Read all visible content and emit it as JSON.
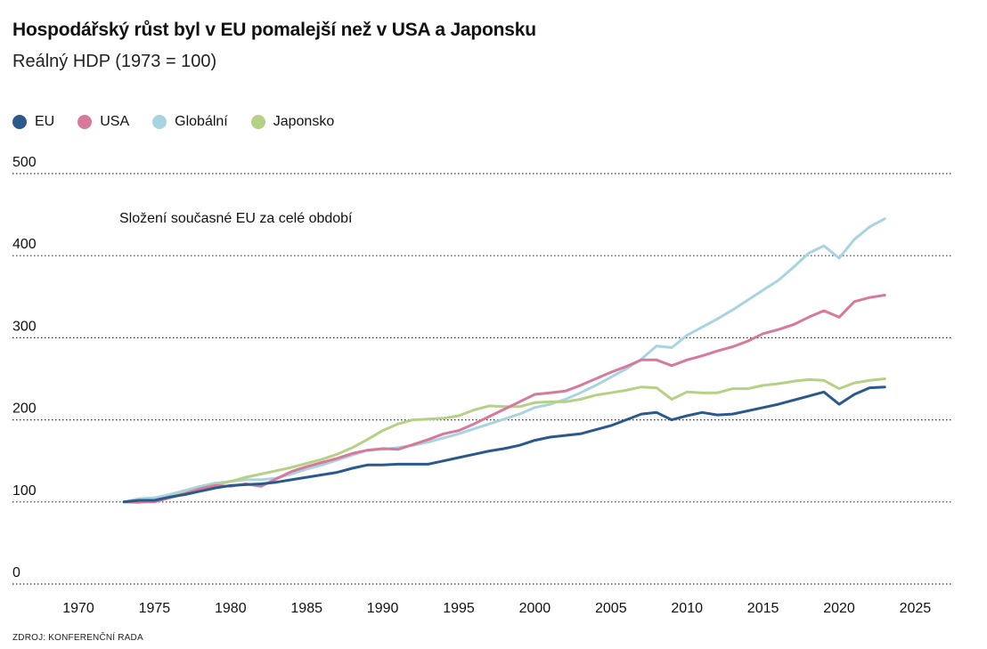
{
  "header": {
    "title": "Hospodářský růst byl v EU pomalejší než v USA a Japonsku",
    "subtitle": "Reálný HDP (1973 = 100)"
  },
  "footer": {
    "source": "ZDROJ: KONFERENČNÍ RADA"
  },
  "chart_data": {
    "type": "line",
    "title": "Hospodářský růst byl v EU pomalejší než v USA a Japonsku",
    "subtitle": "Reálný HDP (1973 = 100)",
    "xlabel": "",
    "ylabel": "",
    "xlim": [
      1966,
      2028
    ],
    "ylim": [
      0,
      500
    ],
    "x_ticks": [
      1970,
      1975,
      1980,
      1985,
      1990,
      1995,
      2000,
      2005,
      2010,
      2015,
      2020,
      2025
    ],
    "y_ticks": [
      0,
      100,
      200,
      300,
      400,
      500
    ],
    "grid": "horizontal dotted",
    "legend_position": "top-left",
    "annotation": "Složení současné EU za celé období",
    "x": [
      1973,
      1974,
      1975,
      1976,
      1977,
      1978,
      1979,
      1980,
      1981,
      1982,
      1983,
      1984,
      1985,
      1986,
      1987,
      1988,
      1989,
      1990,
      1991,
      1992,
      1993,
      1994,
      1995,
      1996,
      1997,
      1998,
      1999,
      2000,
      2001,
      2002,
      2003,
      2004,
      2005,
      2006,
      2007,
      2008,
      2009,
      2010,
      2011,
      2012,
      2013,
      2014,
      2015,
      2016,
      2017,
      2018,
      2019,
      2020,
      2021,
      2022,
      2023
    ],
    "series": [
      {
        "name": "EU",
        "color": "#2a5a8c",
        "values": [
          100,
          102,
          102,
          106,
          109,
          113,
          117,
          120,
          121,
          122,
          124,
          127,
          130,
          133,
          136,
          141,
          145,
          145,
          146,
          146,
          146,
          150,
          154,
          158,
          162,
          165,
          169,
          175,
          179,
          181,
          183,
          188,
          193,
          200,
          207,
          209,
          200,
          205,
          209,
          206,
          207,
          211,
          215,
          219,
          224,
          229,
          234,
          219,
          231,
          239,
          240
        ]
      },
      {
        "name": "USA",
        "color": "#d6799a",
        "values": [
          100,
          100,
          100,
          105,
          110,
          116,
          120,
          119,
          122,
          119,
          128,
          137,
          143,
          148,
          153,
          159,
          163,
          165,
          164,
          170,
          176,
          183,
          187,
          195,
          204,
          213,
          222,
          231,
          233,
          235,
          242,
          250,
          258,
          265,
          273,
          273,
          266,
          273,
          278,
          284,
          289,
          296,
          305,
          310,
          316,
          325,
          333,
          325,
          344,
          349,
          352
        ]
      },
      {
        "name": "Globální",
        "color": "#a8d4e2",
        "values": [
          100,
          104,
          105,
          109,
          114,
          119,
          123,
          125,
          127,
          127,
          129,
          134,
          140,
          145,
          151,
          157,
          163,
          164,
          166,
          169,
          173,
          178,
          183,
          189,
          195,
          201,
          207,
          215,
          219,
          225,
          233,
          242,
          252,
          262,
          274,
          290,
          288,
          303,
          313,
          323,
          334,
          346,
          358,
          370,
          386,
          403,
          412,
          397,
          420,
          435,
          445
        ]
      },
      {
        "name": "Japonsko",
        "color": "#b5d184",
        "values": [
          100,
          99,
          102,
          106,
          111,
          116,
          121,
          125,
          130,
          134,
          138,
          142,
          147,
          152,
          158,
          166,
          176,
          187,
          195,
          200,
          201,
          202,
          205,
          212,
          217,
          216,
          216,
          221,
          222,
          222,
          225,
          230,
          233,
          236,
          240,
          239,
          225,
          234,
          233,
          233,
          238,
          238,
          242,
          244,
          247,
          249,
          248,
          238,
          245,
          248,
          250
        ]
      }
    ]
  }
}
